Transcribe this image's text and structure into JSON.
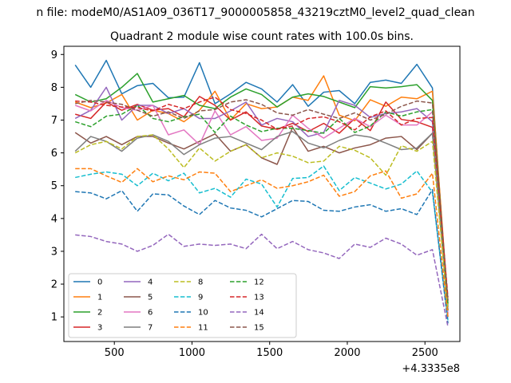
{
  "figure": {
    "suptitle": "n file: modeM0/AS1A09_036T17_9000005858_43219cztM0_level2_quad_clean",
    "axis_offset_text": "+4.3335e8"
  },
  "chart_data": {
    "type": "line",
    "title": "Quadrant 2 module wise count rates with 100.0s bins.",
    "xlabel": "",
    "ylabel": "",
    "xlim": [
      175,
      2725
    ],
    "ylim": [
      0.25,
      9.25
    ],
    "x_offset": "+4.3335e8",
    "x_ticks": [
      500,
      1000,
      1500,
      2000,
      2500
    ],
    "y_ticks": [
      1,
      2,
      3,
      4,
      5,
      6,
      7,
      8,
      9
    ],
    "grid": false,
    "legend_position": "lower-left",
    "legend_columns": 4,
    "x": [
      248,
      348,
      448,
      548,
      648,
      748,
      848,
      948,
      1048,
      1148,
      1248,
      1348,
      1448,
      1548,
      1648,
      1748,
      1848,
      1948,
      2048,
      2148,
      2248,
      2348,
      2448,
      2548,
      2648
    ],
    "series": [
      {
        "name": "0",
        "color": "#1f77b4",
        "dash": "solid",
        "values": [
          8.68,
          8.0,
          8.82,
          7.8,
          8.05,
          8.12,
          7.68,
          7.7,
          8.75,
          7.5,
          7.8,
          8.15,
          7.95,
          7.55,
          8.08,
          7.42,
          7.85,
          7.9,
          7.5,
          8.15,
          8.22,
          8.12,
          8.7,
          7.98,
          1.2
        ]
      },
      {
        "name": "1",
        "color": "#ff7f0e",
        "dash": "solid",
        "values": [
          7.55,
          7.38,
          7.52,
          7.78,
          7.0,
          7.3,
          7.2,
          6.95,
          7.3,
          7.88,
          7.0,
          7.5,
          7.35,
          7.4,
          7.7,
          7.6,
          8.35,
          7.15,
          6.98,
          7.62,
          7.42,
          7.7,
          7.65,
          7.88,
          1.4
        ]
      },
      {
        "name": "2",
        "color": "#2ca02c",
        "dash": "solid",
        "values": [
          7.78,
          7.55,
          7.65,
          8.0,
          8.42,
          7.55,
          7.65,
          7.75,
          7.45,
          7.35,
          7.7,
          7.95,
          7.78,
          7.4,
          7.7,
          7.8,
          7.72,
          7.55,
          7.38,
          8.02,
          7.98,
          8.02,
          8.08,
          7.6,
          1.3
        ]
      },
      {
        "name": "3",
        "color": "#d62728",
        "dash": "solid",
        "values": [
          7.18,
          7.05,
          7.55,
          7.3,
          7.48,
          7.3,
          7.35,
          7.1,
          7.72,
          7.45,
          7.0,
          7.25,
          6.82,
          6.72,
          6.9,
          6.65,
          6.9,
          6.6,
          7.05,
          6.68,
          7.55,
          7.02,
          6.95,
          6.78,
          1.2
        ]
      },
      {
        "name": "4",
        "color": "#9467bd",
        "dash": "solid",
        "values": [
          7.05,
          7.3,
          8.0,
          7.0,
          7.45,
          7.45,
          7.2,
          7.35,
          7.05,
          7.05,
          7.28,
          7.55,
          6.85,
          7.05,
          6.95,
          6.5,
          6.62,
          7.6,
          7.45,
          7.08,
          7.2,
          7.25,
          7.35,
          6.95,
          1.0
        ]
      },
      {
        "name": "5",
        "color": "#8c564b",
        "dash": "solid",
        "values": [
          6.62,
          6.3,
          6.5,
          6.25,
          6.5,
          6.5,
          6.3,
          6.12,
          6.35,
          6.58,
          6.05,
          6.25,
          5.85,
          5.65,
          6.78,
          6.05,
          6.2,
          6.0,
          6.15,
          6.25,
          6.45,
          6.5,
          6.1,
          6.6,
          1.5
        ]
      },
      {
        "name": "6",
        "color": "#e377c2",
        "dash": "solid",
        "values": [
          7.45,
          7.28,
          7.6,
          7.38,
          7.3,
          7.45,
          6.55,
          6.7,
          6.25,
          7.28,
          6.55,
          6.8,
          6.38,
          6.45,
          7.15,
          6.75,
          6.45,
          6.75,
          7.05,
          6.8,
          7.15,
          6.85,
          6.85,
          7.25,
          1.1
        ]
      },
      {
        "name": "7",
        "color": "#7f7f7f",
        "dash": "solid",
        "values": [
          6.05,
          6.5,
          6.35,
          6.05,
          6.45,
          6.55,
          6.35,
          5.95,
          6.25,
          6.45,
          6.5,
          6.3,
          6.1,
          6.5,
          6.65,
          6.3,
          6.15,
          6.38,
          6.55,
          6.48,
          6.3,
          6.1,
          6.15,
          6.6,
          1.2
        ]
      },
      {
        "name": "8",
        "color": "#bcbd22",
        "dash": "dashed",
        "values": [
          6.0,
          6.25,
          6.35,
          6.12,
          6.5,
          6.55,
          6.12,
          5.55,
          6.15,
          5.75,
          6.05,
          6.25,
          5.85,
          6.0,
          5.9,
          5.7,
          5.75,
          6.2,
          6.08,
          5.85,
          5.32,
          6.22,
          6.05,
          6.35,
          1.2
        ]
      },
      {
        "name": "9",
        "color": "#17becf",
        "dash": "dashed",
        "values": [
          5.25,
          5.35,
          5.42,
          5.35,
          5.0,
          5.38,
          5.15,
          5.38,
          4.78,
          4.92,
          4.65,
          5.2,
          5.05,
          4.35,
          5.22,
          5.25,
          5.6,
          4.85,
          5.25,
          5.08,
          4.9,
          5.05,
          5.45,
          4.8,
          0.9
        ]
      },
      {
        "name": "10",
        "color": "#1f77b4",
        "dash": "dashed",
        "values": [
          4.82,
          4.78,
          4.6,
          4.85,
          4.22,
          4.75,
          4.72,
          4.38,
          4.12,
          4.55,
          4.32,
          4.25,
          4.05,
          4.3,
          4.55,
          4.52,
          4.25,
          4.22,
          4.35,
          4.42,
          4.22,
          4.3,
          4.12,
          4.88,
          0.8
        ]
      },
      {
        "name": "11",
        "color": "#ff7f0e",
        "dash": "dashed",
        "values": [
          5.52,
          5.52,
          5.3,
          5.1,
          5.52,
          5.12,
          5.3,
          5.18,
          5.42,
          5.38,
          4.82,
          5.0,
          5.18,
          4.92,
          5.0,
          5.12,
          5.32,
          4.68,
          4.82,
          5.3,
          5.45,
          4.62,
          4.75,
          5.38,
          1.0
        ]
      },
      {
        "name": "12",
        "color": "#2ca02c",
        "dash": "dashed",
        "values": [
          6.95,
          6.8,
          7.12,
          7.18,
          7.45,
          7.05,
          6.95,
          7.1,
          7.18,
          6.62,
          7.12,
          6.85,
          6.65,
          6.75,
          6.75,
          6.68,
          6.6,
          7.05,
          6.62,
          6.82,
          7.25,
          7.12,
          7.25,
          7.32,
          1.4
        ]
      },
      {
        "name": "13",
        "color": "#d62728",
        "dash": "dashed",
        "values": [
          7.58,
          7.55,
          7.45,
          7.4,
          7.38,
          7.28,
          7.48,
          7.35,
          7.55,
          7.7,
          7.32,
          7.2,
          7.0,
          6.72,
          6.82,
          7.05,
          7.1,
          6.95,
          6.7,
          7.1,
          7.28,
          6.85,
          7.05,
          7.08,
          1.6
        ]
      },
      {
        "name": "14",
        "color": "#9467bd",
        "dash": "dashed",
        "values": [
          3.5,
          3.45,
          3.3,
          3.22,
          3.0,
          3.18,
          3.52,
          3.15,
          3.22,
          3.18,
          3.22,
          3.08,
          3.52,
          3.08,
          3.3,
          3.05,
          2.95,
          2.78,
          3.22,
          3.12,
          3.4,
          3.22,
          2.88,
          3.05,
          0.7
        ]
      },
      {
        "name": "15",
        "color": "#8c564b",
        "dash": "dashed",
        "values": [
          7.5,
          7.6,
          7.55,
          7.48,
          7.3,
          7.12,
          7.25,
          7.05,
          7.28,
          7.32,
          7.55,
          7.62,
          7.48,
          7.22,
          7.15,
          7.32,
          7.18,
          7.05,
          7.22,
          7.0,
          7.18,
          7.42,
          7.58,
          7.52,
          1.5
        ]
      }
    ]
  }
}
